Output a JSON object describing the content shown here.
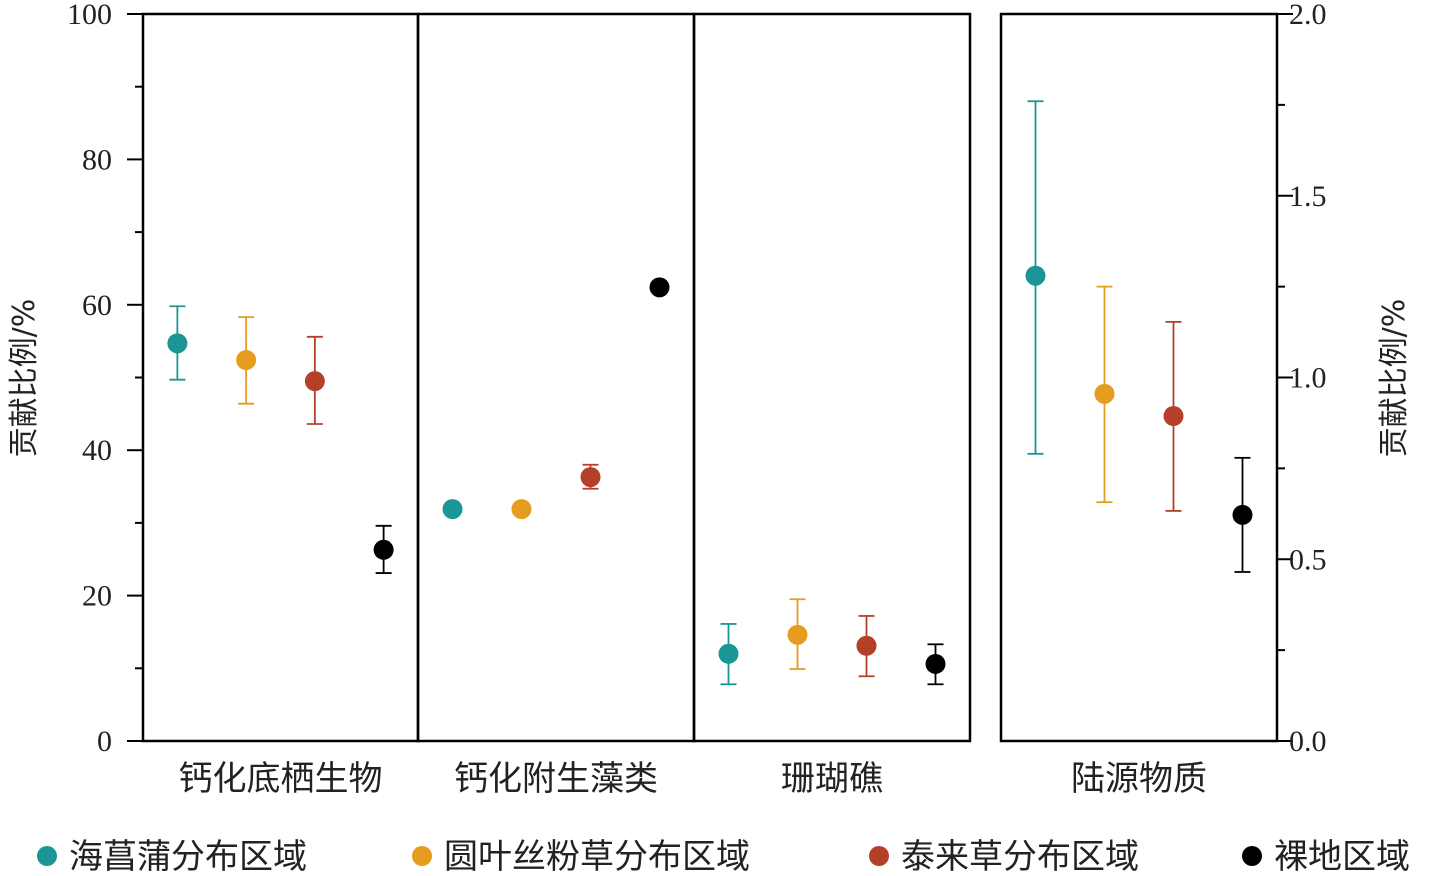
{
  "chart_data": {
    "type": "scatter",
    "title": "",
    "ylabel_left": "贡献比例/%",
    "ylabel_right": "贡献比例/%",
    "ylim_left": [
      0,
      100
    ],
    "ylim_right": [
      0,
      2.0
    ],
    "yticks_left": [
      "0",
      "20",
      "40",
      "60",
      "80",
      "100"
    ],
    "yticks_right": [
      "0.0",
      "0.5",
      "1.0",
      "1.5",
      "2.0"
    ],
    "categories": [
      "钙化底栖生物",
      "钙化附生藻类",
      "珊瑚礁",
      "陆源物质"
    ],
    "category_axis": [
      "left",
      "left",
      "left",
      "right"
    ],
    "series": [
      {
        "name": "海菖蒲分布区域",
        "color": "#1a9696",
        "values": [
          54.7,
          31.9,
          12.0,
          1.28
        ],
        "err_high": [
          59.8,
          null,
          16.1,
          1.76
        ],
        "err_low": [
          49.7,
          null,
          7.8,
          0.79
        ]
      },
      {
        "name": "圆叶丝粉草分布区域",
        "color": "#e69c1e",
        "values": [
          52.4,
          31.9,
          14.6,
          0.955
        ],
        "err_high": [
          58.3,
          null,
          19.5,
          1.25
        ],
        "err_low": [
          46.4,
          null,
          9.9,
          0.657
        ]
      },
      {
        "name": "泰来草分布区域",
        "color": "#b5402a",
        "values": [
          49.5,
          36.3,
          13.1,
          0.894
        ],
        "err_high": [
          55.6,
          38.0,
          17.2,
          1.153
        ],
        "err_low": [
          43.6,
          34.7,
          8.9,
          0.633
        ]
      },
      {
        "name": "裸地区域",
        "color": "#000000",
        "values": [
          26.3,
          62.4,
          10.6,
          0.622
        ],
        "err_high": [
          29.6,
          null,
          13.3,
          0.779
        ],
        "err_low": [
          23.1,
          null,
          7.8,
          0.465
        ]
      }
    ],
    "legend": "bottom"
  }
}
